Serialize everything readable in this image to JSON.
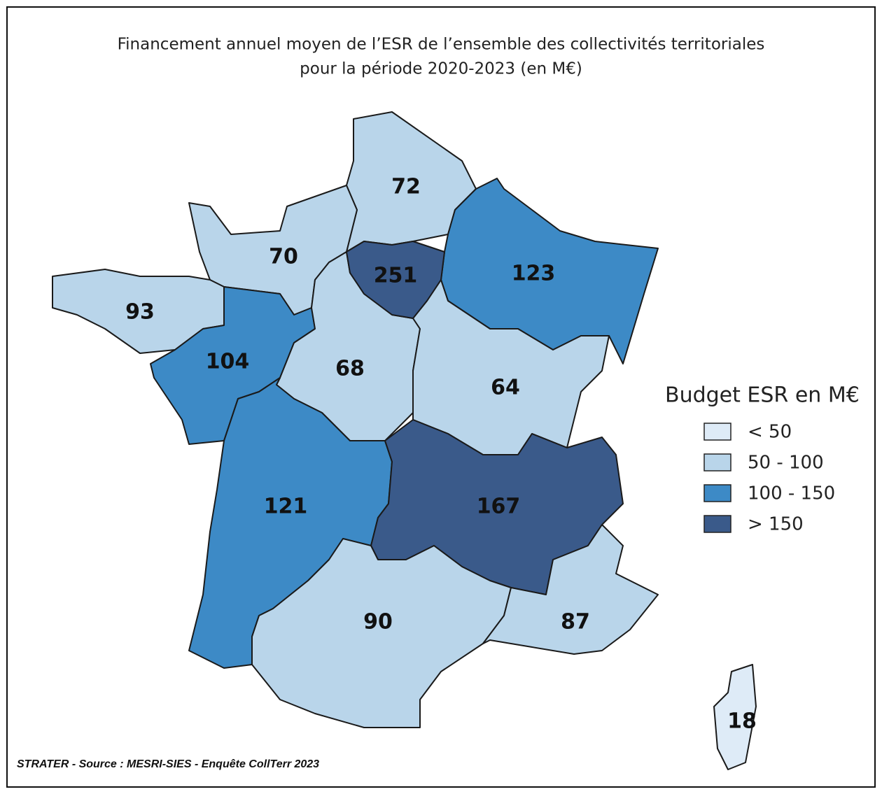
{
  "title_lines": [
    "Financement annuel moyen de l’ESR de l’ensemble des collectivités territoriales",
    "pour la période 2020-2023 (en M€)"
  ],
  "regions": [
    {
      "value": 72,
      "color": "#b9d5ea"
    },
    {
      "value": 70,
      "color": "#b9d5ea"
    },
    {
      "value": 251,
      "color": "#3a5a8a"
    },
    {
      "value": 123,
      "color": "#3d8ac6"
    },
    {
      "value": 93,
      "color": "#b9d5ea"
    },
    {
      "value": 104,
      "color": "#3d8ac6"
    },
    {
      "value": 68,
      "color": "#b9d5ea"
    },
    {
      "value": 64,
      "color": "#b9d5ea"
    },
    {
      "value": 121,
      "color": "#3d8ac6"
    },
    {
      "value": 167,
      "color": "#3a5a8a"
    },
    {
      "value": 90,
      "color": "#b9d5ea"
    },
    {
      "value": 87,
      "color": "#b9d5ea"
    },
    {
      "value": 18,
      "color": "#deebf7"
    }
  ],
  "legend": {
    "title": "Budget ESR en M€",
    "items": [
      {
        "label": "< 50",
        "color": "#deebf7"
      },
      {
        "label": "50 - 100",
        "color": "#b9d5ea"
      },
      {
        "label": "100 - 150",
        "color": "#3d8ac6"
      },
      {
        "label": "> 150",
        "color": "#3a5a8a"
      }
    ]
  },
  "source": "STRATER - Source : MESRI-SIES - Enquête CollTerr 2023"
}
